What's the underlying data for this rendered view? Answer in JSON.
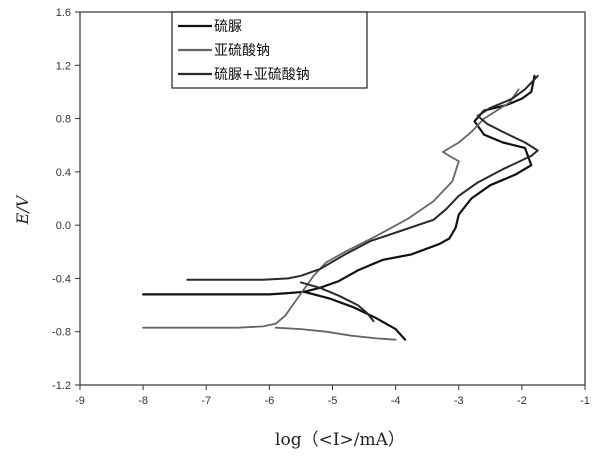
{
  "chart_data": {
    "type": "line",
    "title": "",
    "xlabel": "log（<I>/mA）",
    "ylabel": "E/V",
    "xlim": [
      -9,
      -1
    ],
    "ylim": [
      -1.2,
      1.6
    ],
    "x_ticks": [
      "-9",
      "-8",
      "-7",
      "-6",
      "-5",
      "-4",
      "-3",
      "-2",
      "-1"
    ],
    "y_ticks": [
      "-1.2",
      "-0.8",
      "-0.4",
      "0.0",
      "0.4",
      "0.8",
      "1.2",
      "1.6"
    ],
    "grid": false,
    "legend_position": "top-left",
    "series": [
      {
        "name": "硫脲",
        "color": "#111111",
        "points": [
          [
            -8.0,
            -0.52
          ],
          [
            -7.3,
            -0.52
          ],
          [
            -6.5,
            -0.52
          ],
          [
            -6.0,
            -0.52
          ],
          [
            -5.7,
            -0.51
          ],
          [
            -5.45,
            -0.5
          ],
          [
            -5.2,
            -0.47
          ],
          [
            -4.9,
            -0.42
          ],
          [
            -4.6,
            -0.34
          ],
          [
            -4.2,
            -0.26
          ],
          [
            -3.75,
            -0.22
          ],
          [
            -3.3,
            -0.14
          ],
          [
            -3.15,
            -0.1
          ],
          [
            -3.05,
            -0.02
          ],
          [
            -3.0,
            0.08
          ],
          [
            -2.8,
            0.2
          ],
          [
            -2.5,
            0.3
          ],
          [
            -2.1,
            0.38
          ],
          [
            -1.85,
            0.45
          ],
          [
            -1.95,
            0.58
          ],
          [
            -2.3,
            0.62
          ],
          [
            -2.6,
            0.68
          ],
          [
            -2.75,
            0.78
          ],
          [
            -2.6,
            0.86
          ],
          [
            -2.25,
            0.9
          ],
          [
            -2.0,
            0.95
          ],
          [
            -1.85,
            1.0
          ],
          [
            -1.8,
            1.12
          ]
        ]
      },
      {
        "name": "亚硫酸钠",
        "color": "#666666",
        "points": [
          [
            -8.0,
            -0.77
          ],
          [
            -7.2,
            -0.77
          ],
          [
            -6.5,
            -0.77
          ],
          [
            -6.1,
            -0.76
          ],
          [
            -5.9,
            -0.74
          ],
          [
            -5.75,
            -0.68
          ],
          [
            -5.6,
            -0.58
          ],
          [
            -5.45,
            -0.48
          ],
          [
            -5.3,
            -0.38
          ],
          [
            -5.1,
            -0.28
          ],
          [
            -4.8,
            -0.2
          ],
          [
            -4.3,
            -0.08
          ],
          [
            -3.8,
            0.05
          ],
          [
            -3.4,
            0.18
          ],
          [
            -3.1,
            0.33
          ],
          [
            -3.0,
            0.48
          ],
          [
            -3.15,
            0.52
          ],
          [
            -3.25,
            0.55
          ],
          [
            -3.0,
            0.62
          ],
          [
            -2.8,
            0.7
          ],
          [
            -2.6,
            0.8
          ],
          [
            -2.2,
            0.92
          ],
          [
            -2.05,
            1.02
          ]
        ]
      },
      {
        "name": "硫脲+亚硫酸钠",
        "color": "#2a2a2a",
        "points": [
          [
            -7.3,
            -0.41
          ],
          [
            -6.6,
            -0.41
          ],
          [
            -6.1,
            -0.41
          ],
          [
            -5.7,
            -0.4
          ],
          [
            -5.5,
            -0.38
          ],
          [
            -5.2,
            -0.33
          ],
          [
            -4.8,
            -0.22
          ],
          [
            -4.4,
            -0.12
          ],
          [
            -3.9,
            -0.04
          ],
          [
            -3.4,
            0.04
          ],
          [
            -3.2,
            0.12
          ],
          [
            -3.0,
            0.22
          ],
          [
            -2.7,
            0.32
          ],
          [
            -2.3,
            0.42
          ],
          [
            -1.85,
            0.52
          ],
          [
            -1.75,
            0.56
          ],
          [
            -1.95,
            0.62
          ],
          [
            -2.3,
            0.7
          ],
          [
            -2.55,
            0.76
          ],
          [
            -2.7,
            0.82
          ],
          [
            -2.5,
            0.88
          ],
          [
            -2.15,
            0.95
          ],
          [
            -1.95,
            1.02
          ],
          [
            -1.75,
            1.12
          ]
        ]
      },
      {
        "name": "",
        "color": "#111111",
        "points": [
          [
            -5.45,
            -0.5
          ],
          [
            -5.05,
            -0.55
          ],
          [
            -4.65,
            -0.62
          ],
          [
            -4.3,
            -0.7
          ],
          [
            -4.0,
            -0.78
          ],
          [
            -3.85,
            -0.86
          ]
        ]
      },
      {
        "name": "",
        "color": "#666666",
        "points": [
          [
            -5.9,
            -0.77
          ],
          [
            -5.5,
            -0.78
          ],
          [
            -5.1,
            -0.8
          ],
          [
            -4.7,
            -0.83
          ],
          [
            -4.3,
            -0.85
          ],
          [
            -4.0,
            -0.86
          ]
        ]
      },
      {
        "name": "",
        "color": "#2a2a2a",
        "points": [
          [
            -5.5,
            -0.43
          ],
          [
            -5.2,
            -0.47
          ],
          [
            -4.9,
            -0.53
          ],
          [
            -4.6,
            -0.6
          ],
          [
            -4.45,
            -0.66
          ],
          [
            -4.35,
            -0.72
          ]
        ]
      }
    ]
  }
}
